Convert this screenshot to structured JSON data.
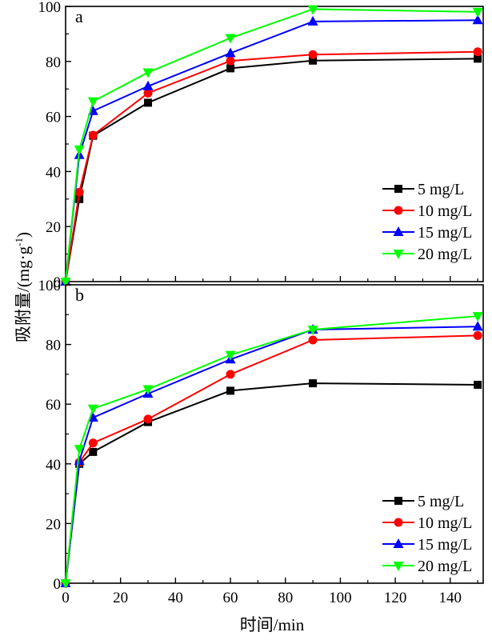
{
  "ylabel": "吸附量/(mg·g",
  "ylabel_sup": "-1",
  "ylabel_end": ")",
  "xlabel": "时间/min",
  "colors": {
    "5 mg/L": "#000000",
    "10 mg/L": "#ff0000",
    "15 mg/L": "#0000ff",
    "20 mg/L": "#00ff00"
  },
  "markers": {
    "5 mg/L": "square",
    "10 mg/L": "circle",
    "15 mg/L": "triangle-up",
    "20 mg/L": "triangle-down"
  },
  "chart_data": [
    {
      "type": "line",
      "panel_label": "a",
      "x": [
        0,
        5,
        10,
        30,
        60,
        90,
        150
      ],
      "xlim": [
        0,
        152
      ],
      "ylim": [
        0,
        100
      ],
      "xticks": [
        0,
        20,
        40,
        60,
        80,
        100,
        120,
        140
      ],
      "yticks": [
        0,
        20,
        40,
        60,
        80,
        100
      ],
      "grid": false,
      "legend_position": "lower-right",
      "series": [
        {
          "name": "5 mg/L",
          "values": [
            0,
            30,
            53,
            65,
            77.5,
            80.3,
            81
          ]
        },
        {
          "name": "10 mg/L",
          "values": [
            0,
            32.5,
            53.2,
            68.5,
            80.2,
            82.5,
            83.5
          ]
        },
        {
          "name": "15 mg/L",
          "values": [
            0,
            46,
            62,
            71,
            83,
            94.5,
            95
          ]
        },
        {
          "name": "20 mg/L",
          "values": [
            0,
            48,
            65.5,
            76,
            88.5,
            99,
            98
          ]
        }
      ]
    },
    {
      "type": "line",
      "panel_label": "b",
      "x": [
        0,
        5,
        10,
        30,
        60,
        90,
        150
      ],
      "xlim": [
        0,
        152
      ],
      "ylim": [
        0,
        100
      ],
      "xticks": [
        0,
        20,
        40,
        60,
        80,
        100,
        120,
        140
      ],
      "yticks": [
        0,
        20,
        40,
        60,
        80,
        100
      ],
      "grid": false,
      "legend_position": "lower-right",
      "series": [
        {
          "name": "5 mg/L",
          "values": [
            0,
            40,
            44,
            54,
            64.5,
            67,
            66.5
          ]
        },
        {
          "name": "10 mg/L",
          "values": [
            0,
            40.5,
            47,
            55,
            70,
            81.5,
            83
          ]
        },
        {
          "name": "15 mg/L",
          "values": [
            0,
            41,
            55.5,
            63.5,
            75,
            85,
            86
          ]
        },
        {
          "name": "20 mg/L",
          "values": [
            0,
            45,
            58.5,
            65,
            76.5,
            85,
            89.5
          ]
        }
      ]
    }
  ]
}
